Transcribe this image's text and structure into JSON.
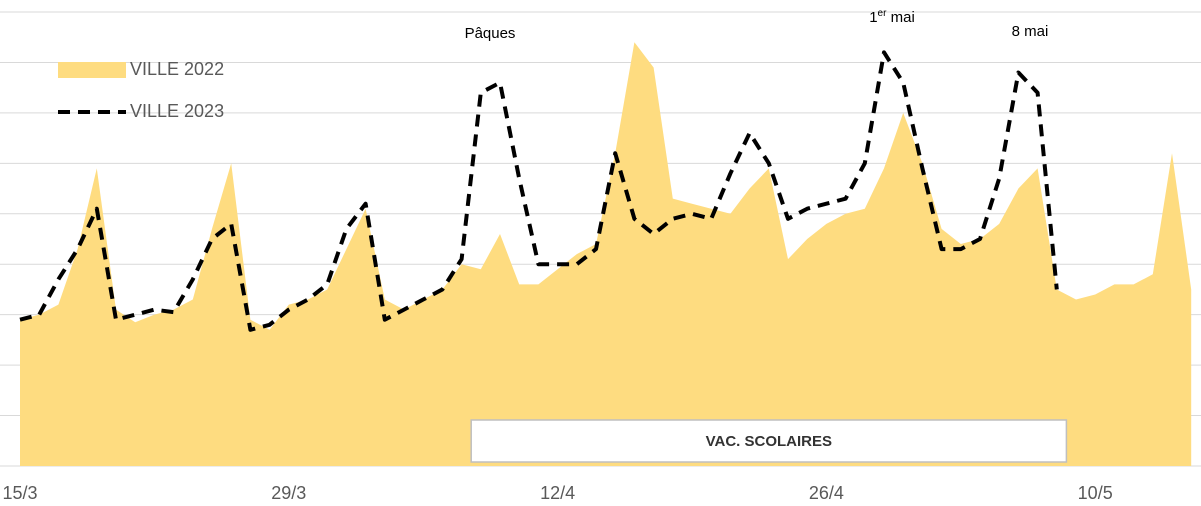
{
  "chart_data": {
    "type": "area_line",
    "categories": [
      "15/3",
      null,
      null,
      null,
      null,
      null,
      null,
      null,
      null,
      null,
      null,
      null,
      null,
      null,
      "29/3",
      null,
      null,
      null,
      null,
      null,
      null,
      null,
      null,
      null,
      null,
      null,
      null,
      null,
      "12/4",
      null,
      null,
      null,
      null,
      null,
      null,
      null,
      null,
      null,
      null,
      null,
      null,
      null,
      "26/4",
      null,
      null,
      null,
      null,
      null,
      null,
      null,
      null,
      null,
      null,
      null,
      null,
      null,
      "10/5",
      null,
      null,
      null,
      null,
      null
    ],
    "series": [
      {
        "name": "VILLE 2022",
        "color": "#fedc80",
        "style": "area",
        "values": [
          2.9,
          3.0,
          3.2,
          4.3,
          5.9,
          3.1,
          2.85,
          3.0,
          3.1,
          3.3,
          4.7,
          6.0,
          2.9,
          2.7,
          3.2,
          3.3,
          3.5,
          4.3,
          5.1,
          3.3,
          3.1,
          3.3,
          3.5,
          4.0,
          3.9,
          4.6,
          3.6,
          3.6,
          3.9,
          4.2,
          4.4,
          6.2,
          8.4,
          7.9,
          5.3,
          5.2,
          5.1,
          5.0,
          5.5,
          5.9,
          4.1,
          4.5,
          4.8,
          5.0,
          5.1,
          5.9,
          7.0,
          6.0,
          4.7,
          4.4,
          4.5,
          4.8,
          5.5,
          5.9,
          3.5,
          3.3,
          3.4,
          3.6,
          3.6,
          3.8,
          6.2,
          3.5
        ]
      },
      {
        "name": "VILLE 2023",
        "color": "#000000",
        "style": "dashed",
        "values": [
          2.9,
          3.0,
          3.7,
          4.3,
          5.1,
          2.9,
          3.0,
          3.1,
          3.05,
          3.7,
          4.5,
          4.8,
          2.7,
          2.8,
          3.1,
          3.3,
          3.6,
          4.7,
          5.2,
          2.9,
          3.1,
          3.3,
          3.5,
          4.1,
          7.4,
          7.6,
          5.7,
          4.0,
          4.0,
          4.0,
          4.3,
          6.2,
          4.9,
          4.6,
          4.9,
          5.0,
          4.9,
          5.8,
          6.6,
          6.0,
          4.9,
          5.1,
          5.2,
          5.3,
          6.0,
          8.2,
          7.6,
          5.9,
          4.3,
          4.3,
          4.5,
          5.7,
          7.8,
          7.4,
          3.5,
          null,
          null,
          null,
          null,
          null,
          null,
          null
        ]
      }
    ],
    "ylim": [
      0,
      9
    ],
    "yticks": [
      0,
      1,
      2,
      3,
      4,
      5,
      6,
      7,
      8,
      9
    ],
    "grid": true,
    "legend": "top-left",
    "annotations": [
      [
        "Pâques"
      ],
      [
        "1",
        "er",
        " mai"
      ],
      [
        "8 mai"
      ]
    ],
    "band_label": "VAC. SCOLAIRES"
  }
}
